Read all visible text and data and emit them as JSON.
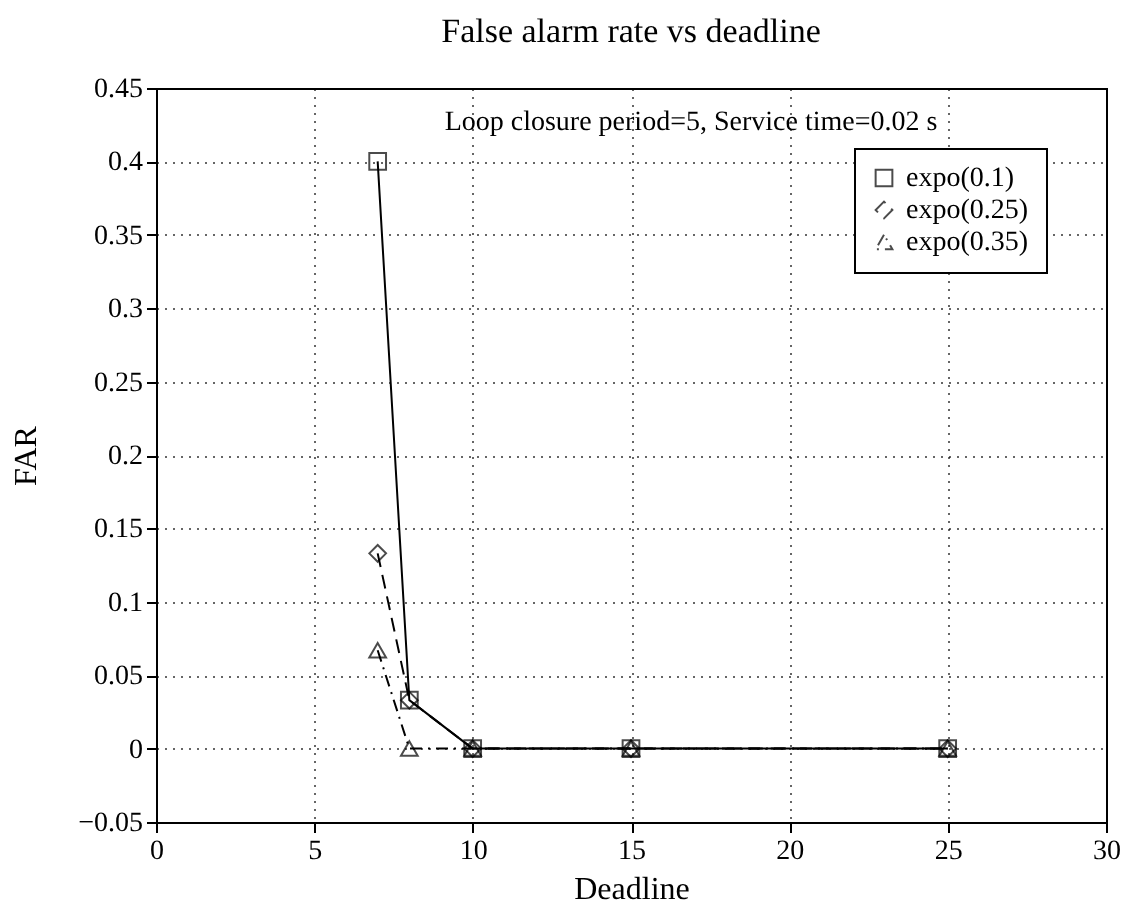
{
  "chart_data": {
    "type": "line",
    "title": "False alarm rate vs deadline",
    "xlabel": "Deadline",
    "ylabel": "FAR",
    "annotations": [
      "Loop  closure period=5, Service time=0.02 s"
    ],
    "x": [
      7,
      8,
      10,
      15,
      25
    ],
    "series": [
      {
        "name": "expo(0.1)",
        "color": "#000000",
        "marker": "square",
        "line_style": "solid",
        "values": [
          0.4,
          0.033,
          0,
          0,
          0
        ]
      },
      {
        "name": "expo(0.25)",
        "color": "#000000",
        "marker": "diamond",
        "line_style": "dashed",
        "values": [
          0.133,
          0.033,
          0,
          0,
          0
        ]
      },
      {
        "name": "expo(0.35)",
        "color": "#000000",
        "marker": "triangle",
        "line_style": "dotted",
        "values": [
          0.067,
          0,
          0,
          0,
          0
        ]
      }
    ],
    "xlim": [
      0,
      30
    ],
    "xticks": [
      0,
      5,
      10,
      15,
      20,
      25,
      30
    ],
    "ylim": [
      -0.05,
      0.45
    ],
    "yticks": [
      -0.05,
      0,
      0.05,
      0.1,
      0.15,
      0.2,
      0.25,
      0.3,
      0.35,
      0.4,
      0.45
    ],
    "grid": true,
    "legend": "top right"
  }
}
